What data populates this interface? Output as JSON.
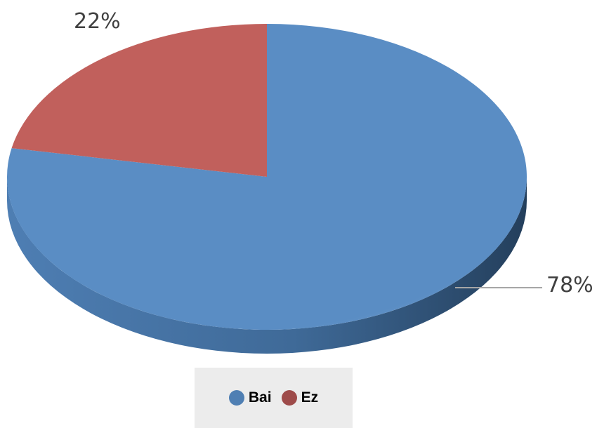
{
  "chart_data": {
    "type": "pie",
    "title": "",
    "style": "3d",
    "legend_position": "bottom",
    "slices": [
      {
        "name": "Bai",
        "value": 78,
        "label": "78%",
        "color": "#5a8dc4"
      },
      {
        "name": "Ez",
        "value": 22,
        "label": "22%",
        "color": "#c1605c"
      }
    ]
  },
  "legend": {
    "items": [
      {
        "label": "Bai",
        "color": "#4f7fb3"
      },
      {
        "label": "Ez",
        "color": "#9e4b4a"
      }
    ]
  }
}
